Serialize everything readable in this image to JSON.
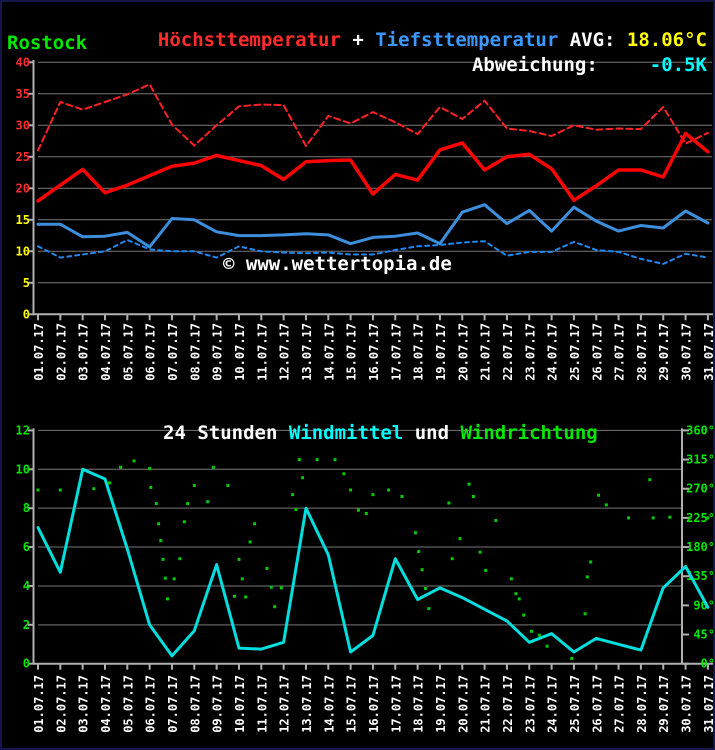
{
  "header": {
    "max_label": "Höchsttemperatur",
    "plus": " + ",
    "min_label": "Tiefsttemperatur",
    "avg_label": " AVG: ",
    "avg_value": "18.06°C",
    "station": "Rostock",
    "deviation_label": "Abweichung:",
    "deviation_value": "-0.5K"
  },
  "watermark": "© www.wettertopia.de",
  "wind_title": {
    "prefix": "24 Stunden ",
    "windmittel": "Windmittel",
    "und": " und ",
    "windrichtung": "Windrichtung"
  },
  "colors": {
    "red_text": "#ff2c2c",
    "blue_text": "#3b99ff",
    "yellow": "#ffff00",
    "cyan_text": "#00ffff",
    "green": "#00e800",
    "white": "#ffffff",
    "grid": "#787878",
    "axis": "#b0b0b0",
    "red_line": "#ff0000",
    "red_dashed": "#ff2222",
    "blue_line": "#3d8edb",
    "blue_dashed": "#2288ee",
    "cyan_line": "#00dede",
    "dot_green": "#00cc00"
  },
  "chart_data": [
    {
      "type": "line",
      "title": "Höchsttemperatur + Tiefsttemperatur",
      "ylim": [
        0,
        40
      ],
      "yticks": [
        0,
        5,
        10,
        15,
        20,
        25,
        30,
        35,
        40
      ],
      "yticks_red": [
        20,
        25,
        30,
        35,
        40
      ],
      "yticks_yellow": [
        0,
        5,
        10,
        15
      ],
      "categories": [
        "01.07.17",
        "02.07.17",
        "03.07.17",
        "04.07.17",
        "05.07.17",
        "06.07.17",
        "07.07.17",
        "08.07.17",
        "09.07.17",
        "10.07.17",
        "11.07.17",
        "12.07.17",
        "13.07.17",
        "14.07.17",
        "15.07.17",
        "16.07.17",
        "17.07.17",
        "18.07.17",
        "19.07.17",
        "20.07.17",
        "21.07.17",
        "22.07.17",
        "23.07.17",
        "24.07.17",
        "25.07.17",
        "26.07.17",
        "27.07.17",
        "28.07.17",
        "29.07.17",
        "30.07.17",
        "31.07.17"
      ],
      "series": [
        {
          "name": "max-temp-dashed",
          "style": "dashed",
          "values": [
            26,
            33.7,
            32.5,
            33.7,
            34.9,
            36.5,
            30.1,
            26.8,
            30.0,
            33.0,
            33.3,
            33.2,
            26.7,
            31.5,
            30.3,
            32.1,
            30.5,
            28.6,
            32.9,
            31.0,
            33.9,
            29.5,
            29.1,
            28.3,
            30.0,
            29.3,
            29.5,
            29.4,
            32.9,
            27.1,
            28.8
          ]
        },
        {
          "name": "max-temp",
          "style": "solid",
          "values": [
            18,
            20.5,
            23,
            19.3,
            20.5,
            22,
            23.5,
            24,
            25.2,
            24.4,
            23.6,
            21.4,
            24.2,
            24.4,
            24.5,
            19.1,
            22.2,
            21.3,
            26.1,
            27.2,
            22.9,
            25.0,
            25.4,
            23.1,
            18.1,
            20.4,
            22.9,
            22.9,
            21.8,
            28.7,
            25.8
          ]
        },
        {
          "name": "min-temp",
          "style": "solid",
          "values": [
            14.3,
            14.3,
            12.3,
            12.4,
            13.0,
            10.7,
            15.2,
            15.0,
            13.1,
            12.5,
            12.5,
            12.6,
            12.8,
            12.6,
            11.2,
            12.2,
            12.4,
            12.9,
            11.2,
            16.2,
            17.4,
            14.4,
            16.5,
            13.2,
            17.0,
            14.8,
            13.2,
            14.1,
            13.7,
            16.4,
            14.5
          ]
        },
        {
          "name": "min-temp-dashed",
          "style": "dashed",
          "values": [
            10.8,
            9.0,
            9.5,
            10.0,
            11.8,
            10.3,
            10.0,
            10.0,
            9.0,
            10.8,
            10.0,
            9.8,
            9.7,
            9.8,
            9.5,
            9.5,
            10.2,
            10.8,
            11.0,
            11.4,
            11.6,
            9.3,
            9.9,
            9.9,
            11.5,
            10.2,
            9.9,
            8.8,
            8.0,
            9.6,
            9.0
          ]
        }
      ]
    },
    {
      "type": "line+scatter",
      "title": "24 Stunden Windmittel und Windrichtung",
      "ylim_left": [
        0,
        12
      ],
      "yticks_left": [
        0,
        2,
        4,
        6,
        8,
        10,
        12
      ],
      "ylim_right": [
        0,
        360
      ],
      "yticks_right_deg": [
        0,
        45,
        90,
        135,
        180,
        225,
        270,
        315,
        360
      ],
      "yticks_right_labels": [
        "0°",
        "45°",
        "90°",
        "135°",
        "180°",
        "225°",
        "270°",
        "315°",
        "360°"
      ],
      "categories": [
        "01.07.17",
        "02.07.17",
        "03.07.17",
        "04.07.17",
        "05.07.17",
        "06.07.17",
        "07.07.17",
        "08.07.17",
        "09.07.17",
        "10.07.17",
        "11.07.17",
        "12.07.17",
        "13.07.17",
        "14.07.17",
        "15.07.17",
        "16.07.17",
        "17.07.17",
        "18.07.17",
        "19.07.17",
        "20.07.17",
        "21.07.17",
        "22.07.17",
        "23.07.17",
        "24.07.17",
        "25.07.17",
        "26.07.17",
        "27.07.17",
        "28.07.17",
        "29.07.17",
        "30.07.17",
        "31.07.17"
      ],
      "series": [
        {
          "name": "windmittel",
          "values": [
            7.0,
            4.7,
            10.0,
            9.5,
            5.9,
            2.0,
            0.4,
            1.7,
            5.1,
            0.8,
            0.75,
            1.1,
            8.0,
            5.6,
            0.6,
            1.45,
            5.4,
            3.3,
            3.9,
            3.4,
            2.8,
            2.2,
            1.1,
            1.55,
            0.6,
            1.3,
            1.0,
            0.7,
            3.9,
            5.0,
            2.9
          ]
        }
      ],
      "scatter": {
        "name": "windrichtung",
        "points": [
          [
            1,
            268
          ],
          [
            2,
            268
          ],
          [
            3.5,
            270
          ],
          [
            4.2,
            279
          ],
          [
            4.7,
            303
          ],
          [
            5.3,
            313
          ],
          [
            6,
            301
          ],
          [
            6.05,
            272
          ],
          [
            6.3,
            247
          ],
          [
            6.4,
            216
          ],
          [
            6.5,
            190
          ],
          [
            6.6,
            161
          ],
          [
            6.7,
            132
          ],
          [
            6.8,
            100
          ],
          [
            7.1,
            131
          ],
          [
            7.35,
            162
          ],
          [
            7.55,
            219
          ],
          [
            7.7,
            247
          ],
          [
            8,
            275
          ],
          [
            8.6,
            250
          ],
          [
            8.85,
            303
          ],
          [
            9.5,
            275
          ],
          [
            9.8,
            104
          ],
          [
            10,
            161
          ],
          [
            10.15,
            131
          ],
          [
            10.3,
            103
          ],
          [
            10.5,
            188
          ],
          [
            10.7,
            216
          ],
          [
            11.25,
            147
          ],
          [
            11.45,
            118
          ],
          [
            11.6,
            88
          ],
          [
            11.9,
            117
          ],
          [
            12.4,
            261
          ],
          [
            12.55,
            238
          ],
          [
            12.7,
            315
          ],
          [
            12.85,
            287
          ],
          [
            13.5,
            315
          ],
          [
            14.3,
            315
          ],
          [
            14.7,
            293
          ],
          [
            15,
            268
          ],
          [
            15.35,
            237
          ],
          [
            15.7,
            232
          ],
          [
            16,
            261
          ],
          [
            16.7,
            268
          ],
          [
            17.3,
            258
          ],
          [
            17.9,
            202
          ],
          [
            18.05,
            173
          ],
          [
            18.2,
            145
          ],
          [
            18.35,
            116
          ],
          [
            18.5,
            85
          ],
          [
            19.4,
            248
          ],
          [
            19.55,
            162
          ],
          [
            19.9,
            193
          ],
          [
            20.3,
            277
          ],
          [
            20.5,
            258
          ],
          [
            20.8,
            172
          ],
          [
            21.05,
            144
          ],
          [
            21.5,
            221
          ],
          [
            22.2,
            131
          ],
          [
            22.4,
            108
          ],
          [
            22.55,
            100
          ],
          [
            22.75,
            75
          ],
          [
            23.1,
            50
          ],
          [
            23.45,
            44
          ],
          [
            23.8,
            27
          ],
          [
            24.9,
            8
          ],
          [
            25.5,
            77
          ],
          [
            25.6,
            134
          ],
          [
            25.75,
            157
          ],
          [
            26.1,
            260
          ],
          [
            26.45,
            245
          ],
          [
            27.45,
            225
          ],
          [
            28.4,
            284
          ],
          [
            28.55,
            225
          ],
          [
            29.3,
            226
          ],
          [
            30.2,
            225
          ],
          [
            31,
            225
          ]
        ]
      }
    }
  ]
}
